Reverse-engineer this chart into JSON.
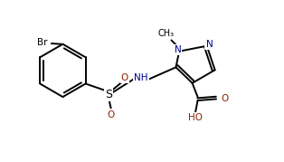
{
  "bg_color": "#ffffff",
  "atom_color": "#000000",
  "n_color": "#00008b",
  "o_color": "#8b2200",
  "br_color": "#000000",
  "line_width": 1.4,
  "fig_width": 3.14,
  "fig_height": 1.79,
  "xlim": [
    0,
    9.5
  ],
  "ylim": [
    0,
    5.4
  ]
}
